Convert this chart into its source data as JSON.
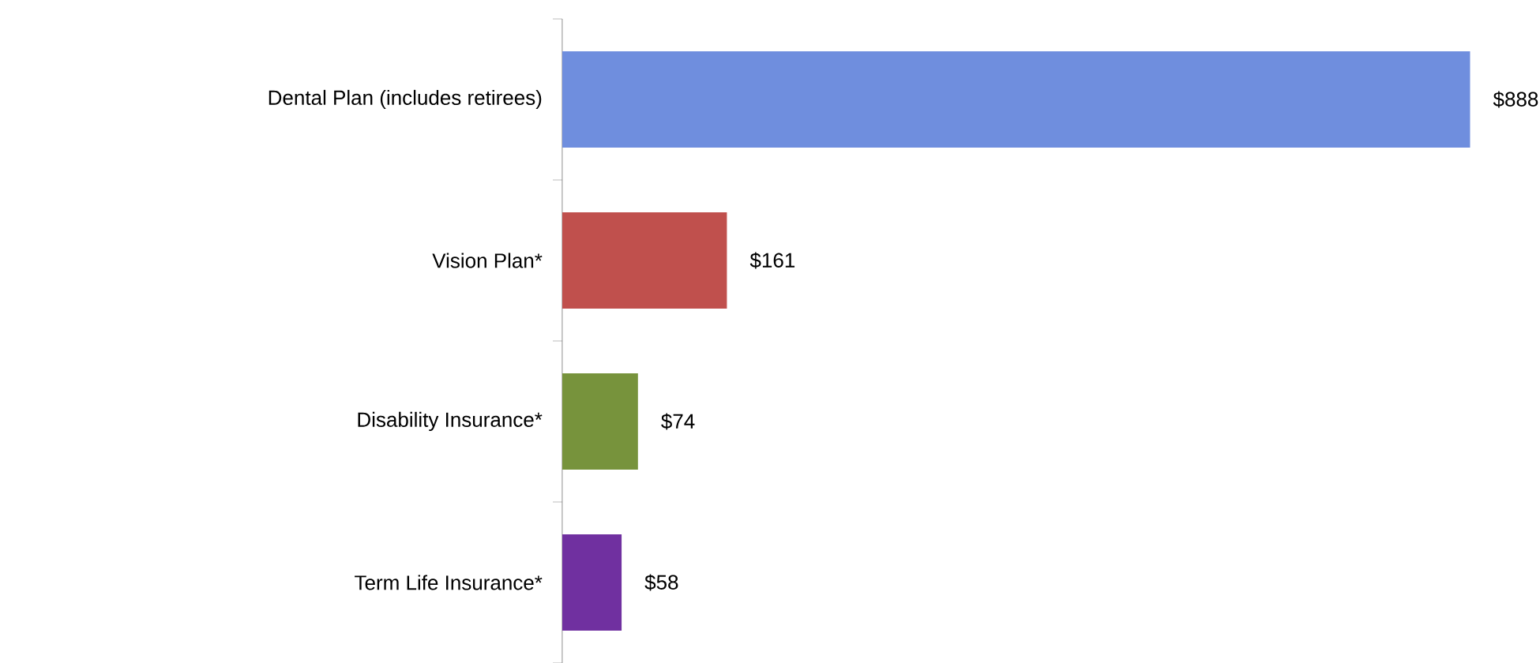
{
  "chart_data": {
    "type": "bar",
    "orientation": "horizontal",
    "categories": [
      "Dental Plan (includes retirees)",
      "Vision Plan*",
      "Disability Insurance*",
      "Term Life Insurance*"
    ],
    "values": [
      888,
      161,
      74,
      58
    ],
    "value_labels": [
      "$888",
      "$161",
      "$74",
      "$58"
    ],
    "colors": [
      "#6f8ede",
      "#c0504d",
      "#77933c",
      "#7030a0"
    ]
  }
}
